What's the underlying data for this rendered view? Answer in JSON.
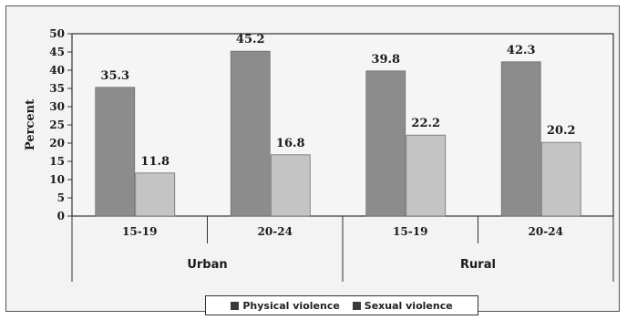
{
  "chart_data": {
    "type": "bar",
    "title": "",
    "xlabel": "",
    "ylabel": "Percent",
    "ylim": [
      0,
      50
    ],
    "yticks": [
      0,
      5,
      10,
      15,
      20,
      25,
      30,
      35,
      40,
      45,
      50
    ],
    "groups": [
      {
        "label": "Urban",
        "categories": [
          "15-19",
          "20-24"
        ]
      },
      {
        "label": "Rural",
        "categories": [
          "15-19",
          "20-24"
        ]
      }
    ],
    "categories": [
      "15-19",
      "20-24",
      "15-19",
      "20-24"
    ],
    "series": [
      {
        "name": "Physical violence",
        "color": "#8c8c8c",
        "values": [
          35.3,
          45.2,
          39.8,
          42.3
        ],
        "labels": [
          "35.3",
          "45.2",
          "39.8",
          "42.3"
        ]
      },
      {
        "name": "Sexual violence",
        "color": "#c4c4c4",
        "values": [
          11.8,
          16.8,
          22.2,
          20.2
        ],
        "labels": [
          "11.8",
          "16.8",
          "22.2",
          "20.2"
        ]
      }
    ],
    "grid": false,
    "legend_position": "bottom"
  },
  "legend_colors": [
    "#3a3a3a",
    "#3a3a3a"
  ]
}
